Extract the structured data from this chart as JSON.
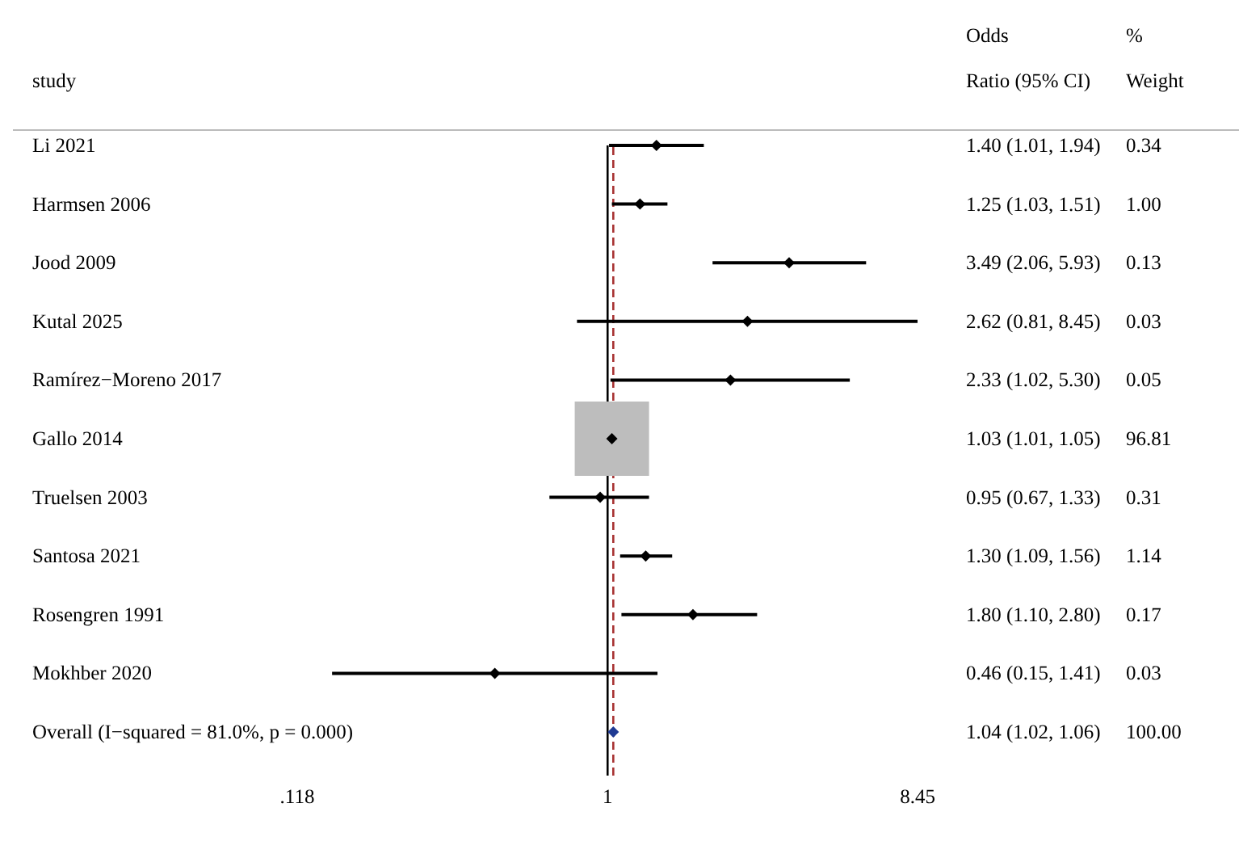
{
  "chart_data": {
    "type": "scatter",
    "orientation": "horizontal",
    "ylabel": "study",
    "annotations": [
      "Odds Ratio (95% CI)",
      "% Weight",
      "0.34",
      "1.00",
      "0.13",
      "0.03",
      "0.05",
      "96.81",
      "0.31",
      "1.14",
      "0.17",
      "0.03",
      "100.00"
    ],
    "categories": [
      "Li 2021",
      "Harmsen 2006",
      "Jood 2009",
      "Kutal 2025",
      "Ramírez−Moreno 2017",
      "Gallo 2014",
      "Truelsen 2003",
      "Santosa 2021",
      "Rosengren 1991",
      "Mokhber 2020",
      "Overall  (I−squared = 81.0%, p = 0.000)"
    ],
    "series": [
      {
        "marker": "diamond",
        "color": "#000000",
        "colors": [
          "#000000",
          "#000000",
          "#000000",
          "#000000",
          "#000000",
          "#000000",
          "#000000",
          "#000000",
          "#000000",
          "#000000",
          "#1f3a93"
        ],
        "values": [
          1.4,
          1.25,
          3.49,
          2.62,
          2.33,
          1.03,
          0.95,
          1.3,
          1.8,
          0.46,
          1.04
        ],
        "errors": [
          [
            1.01,
            1.94
          ],
          [
            1.03,
            1.51
          ],
          [
            2.06,
            5.93
          ],
          [
            0.81,
            8.45
          ],
          [
            1.02,
            5.3
          ],
          [
            1.01,
            1.05
          ],
          [
            0.67,
            1.33
          ],
          [
            1.09,
            1.56
          ],
          [
            1.1,
            2.8
          ],
          [
            0.15,
            1.41
          ],
          [
            1.02,
            1.06
          ]
        ],
        "value_labels": [
          "1.40 (1.01, 1.94)",
          "1.25 (1.03, 1.51)",
          "3.49 (2.06, 5.93)",
          "2.62 (0.81, 8.45)",
          "2.33 (1.02, 5.30)",
          "1.03 (1.01, 1.05)",
          "0.95 (0.67, 1.33)",
          "1.30 (1.09, 1.56)",
          "1.80 (1.10, 2.80)",
          "0.46 (0.15, 1.41)",
          "1.04 (1.02, 1.06)"
        ]
      }
    ],
    "log": "x",
    "xlim": [
      0.118,
      8.45
    ],
    "xticks": [
      {
        "value": 0.118,
        "label": ".118"
      },
      1,
      8.45
    ],
    "ref_lines": [
      {
        "axis": "x",
        "value": 1,
        "color": "#000000",
        "line_style": "solid"
      },
      {
        "axis": "x",
        "value": 1.04,
        "color": "#a83232",
        "line_style": "dashed"
      }
    ]
  }
}
